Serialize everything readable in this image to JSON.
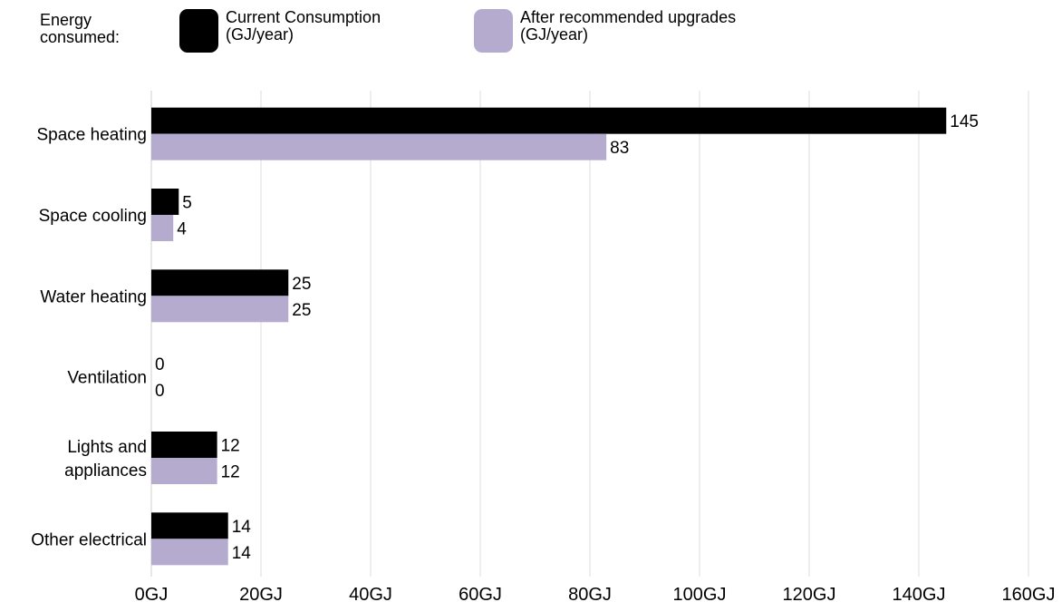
{
  "legend": {
    "title": "Energy\nconsumed:",
    "items": [
      {
        "label": "Current Consumption\n(GJ/year)",
        "color": "#000000"
      },
      {
        "label": "After recommended upgrades\n(GJ/year)",
        "color": "#b5abcf"
      }
    ]
  },
  "chart_data": {
    "type": "bar",
    "orientation": "horizontal",
    "categories": [
      "Space heating",
      "Space cooling",
      "Water heating",
      "Ventilation",
      "Lights and\nappliances",
      "Other electrical"
    ],
    "series": [
      {
        "name": "Current Consumption (GJ/year)",
        "color": "#000000",
        "values": [
          145,
          5,
          25,
          0,
          12,
          14
        ]
      },
      {
        "name": "After recommended upgrades (GJ/year)",
        "color": "#b5abcf",
        "values": [
          83,
          4,
          25,
          0,
          12,
          14
        ]
      }
    ],
    "xlim": [
      0,
      160
    ],
    "xticks": [
      "0GJ",
      "20GJ",
      "40GJ",
      "60GJ",
      "80GJ",
      "100GJ",
      "120GJ",
      "140GJ",
      "160GJ"
    ],
    "grid": true
  }
}
